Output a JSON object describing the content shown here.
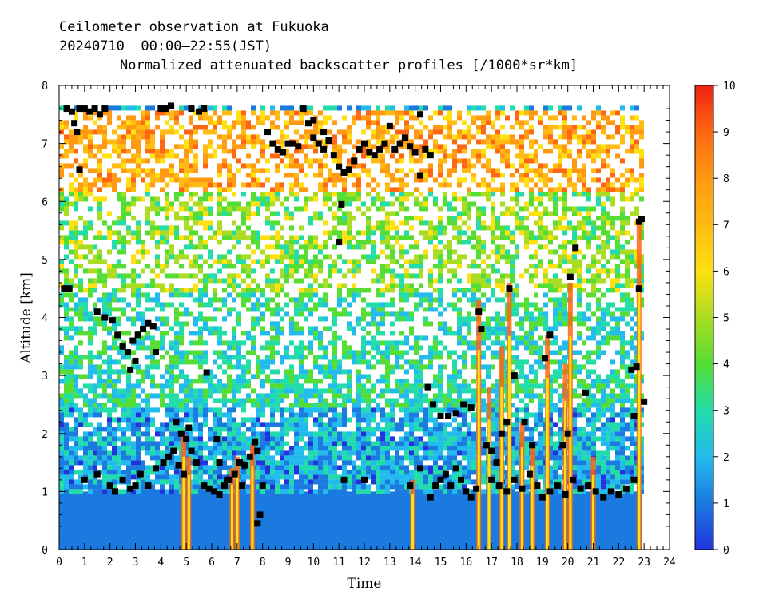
{
  "chart_data": {
    "type": "heatmap",
    "title": "Ceilometer observation at Fukuoka",
    "subtitle": "20240710  00:00–22:55(JST)",
    "quantity_label": "Normalized attenuated backscatter profiles [/1000*sr*km]",
    "xlabel": "Time",
    "ylabel": "Altitude [km]",
    "xlim": [
      0,
      24
    ],
    "ylim": [
      0,
      8
    ],
    "x_ticks": [
      0,
      1,
      2,
      3,
      4,
      5,
      6,
      7,
      8,
      9,
      10,
      11,
      12,
      13,
      14,
      15,
      16,
      17,
      18,
      19,
      20,
      21,
      22,
      23,
      24
    ],
    "y_ticks": [
      0,
      1,
      2,
      3,
      4,
      5,
      6,
      7,
      8
    ],
    "data_time_range": [
      0,
      22.92
    ],
    "data_altitude_max": 7.65,
    "colorbar": {
      "range": [
        0,
        10
      ],
      "ticks": [
        0,
        1,
        2,
        3,
        4,
        5,
        6,
        7,
        8,
        9,
        10
      ],
      "colors": [
        "#2233dd",
        "#1a7ae0",
        "#22bbee",
        "#22ddaa",
        "#55dd33",
        "#aadd22",
        "#ffe011",
        "#ffbb11",
        "#ff9911",
        "#ff6611",
        "#ee2211"
      ]
    },
    "background_layers": [
      {
        "alt_range": [
          0,
          1.0
        ],
        "value": 1.2
      },
      {
        "alt_range": [
          1.0,
          2.5
        ],
        "value": 1.8
      },
      {
        "alt_range": [
          2.5,
          4.5
        ],
        "value": 3.0
      },
      {
        "alt_range": [
          4.5,
          6.2
        ],
        "value": 4.5
      },
      {
        "alt_range": [
          6.2,
          7.65
        ],
        "value": 7.5
      }
    ],
    "convective_columns": [
      {
        "time": 4.9,
        "top": 2.0
      },
      {
        "time": 5.1,
        "top": 1.6
      },
      {
        "time": 6.8,
        "top": 1.4
      },
      {
        "time": 7.0,
        "top": 1.6
      },
      {
        "time": 7.6,
        "top": 1.8
      },
      {
        "time": 13.9,
        "top": 1.2
      },
      {
        "time": 16.5,
        "top": 4.3
      },
      {
        "time": 16.9,
        "top": 2.8
      },
      {
        "time": 17.4,
        "top": 3.5
      },
      {
        "time": 17.7,
        "top": 4.6
      },
      {
        "time": 18.2,
        "top": 2.2
      },
      {
        "time": 18.6,
        "top": 1.8
      },
      {
        "time": 19.2,
        "top": 3.7
      },
      {
        "time": 19.9,
        "top": 3.2
      },
      {
        "time": 20.1,
        "top": 4.6
      },
      {
        "time": 21.0,
        "top": 1.6
      },
      {
        "time": 22.8,
        "top": 5.6
      }
    ],
    "cloud_base_points": [
      [
        0.3,
        7.6
      ],
      [
        0.5,
        7.55
      ],
      [
        0.6,
        7.35
      ],
      [
        0.7,
        7.2
      ],
      [
        0.8,
        7.6
      ],
      [
        1.0,
        7.6
      ],
      [
        1.2,
        7.55
      ],
      [
        1.4,
        7.6
      ],
      [
        1.6,
        7.5
      ],
      [
        1.8,
        7.6
      ],
      [
        0.8,
        6.55
      ],
      [
        0.2,
        4.5
      ],
      [
        0.4,
        4.5
      ],
      [
        1.5,
        4.1
      ],
      [
        1.8,
        4.0
      ],
      [
        2.1,
        3.95
      ],
      [
        2.3,
        3.7
      ],
      [
        2.5,
        3.5
      ],
      [
        2.7,
        3.4
      ],
      [
        2.9,
        3.6
      ],
      [
        3.1,
        3.7
      ],
      [
        3.3,
        3.8
      ],
      [
        3.5,
        3.9
      ],
      [
        3.7,
        3.85
      ],
      [
        3.8,
        3.4
      ],
      [
        2.8,
        3.1
      ],
      [
        3.0,
        3.25
      ],
      [
        4.0,
        7.6
      ],
      [
        4.2,
        7.6
      ],
      [
        4.4,
        7.65
      ],
      [
        5.2,
        7.6
      ],
      [
        5.5,
        7.55
      ],
      [
        5.7,
        7.6
      ],
      [
        1.0,
        1.2
      ],
      [
        1.5,
        1.3
      ],
      [
        2.0,
        1.1
      ],
      [
        2.2,
        1.0
      ],
      [
        2.5,
        1.2
      ],
      [
        2.8,
        1.05
      ],
      [
        3.0,
        1.1
      ],
      [
        3.2,
        1.3
      ],
      [
        3.5,
        1.1
      ],
      [
        3.8,
        1.4
      ],
      [
        4.1,
        1.5
      ],
      [
        4.3,
        1.6
      ],
      [
        4.5,
        1.7
      ],
      [
        4.7,
        1.45
      ],
      [
        4.9,
        1.3
      ],
      [
        4.6,
        2.2
      ],
      [
        4.8,
        2.0
      ],
      [
        5.0,
        1.9
      ],
      [
        5.1,
        2.1
      ],
      [
        5.2,
        1.7
      ],
      [
        5.4,
        1.5
      ],
      [
        5.7,
        1.1
      ],
      [
        5.9,
        1.05
      ],
      [
        6.1,
        1.0
      ],
      [
        6.3,
        0.95
      ],
      [
        6.5,
        1.1
      ],
      [
        6.7,
        1.2
      ],
      [
        6.9,
        1.3
      ],
      [
        7.1,
        1.5
      ],
      [
        7.3,
        1.45
      ],
      [
        7.5,
        1.6
      ],
      [
        7.7,
        1.85
      ],
      [
        7.8,
        1.7
      ],
      [
        6.2,
        1.9
      ],
      [
        6.3,
        1.5
      ],
      [
        6.6,
        1.2
      ],
      [
        7.2,
        1.1
      ],
      [
        7.9,
        0.6
      ],
      [
        7.8,
        0.45
      ],
      [
        8.0,
        1.1
      ],
      [
        5.8,
        3.05
      ],
      [
        8.2,
        7.2
      ],
      [
        8.4,
        7.0
      ],
      [
        8.6,
        6.9
      ],
      [
        8.8,
        6.85
      ],
      [
        9.0,
        7.0
      ],
      [
        9.2,
        7.0
      ],
      [
        9.4,
        6.95
      ],
      [
        9.6,
        7.6
      ],
      [
        9.8,
        7.35
      ],
      [
        10.0,
        7.1
      ],
      [
        10.2,
        7.0
      ],
      [
        10.4,
        6.9
      ],
      [
        10.6,
        7.05
      ],
      [
        10.8,
        6.8
      ],
      [
        11.0,
        6.6
      ],
      [
        11.2,
        6.5
      ],
      [
        11.4,
        6.55
      ],
      [
        11.6,
        6.7
      ],
      [
        11.8,
        6.9
      ],
      [
        12.0,
        7.0
      ],
      [
        12.2,
        6.85
      ],
      [
        12.4,
        6.8
      ],
      [
        12.6,
        6.9
      ],
      [
        12.8,
        7.0
      ],
      [
        13.0,
        7.3
      ],
      [
        13.2,
        6.9
      ],
      [
        13.4,
        7.0
      ],
      [
        13.6,
        7.1
      ],
      [
        13.8,
        6.95
      ],
      [
        14.0,
        6.85
      ],
      [
        14.2,
        7.5
      ],
      [
        14.4,
        6.9
      ],
      [
        14.6,
        6.8
      ],
      [
        14.2,
        6.45
      ],
      [
        11.1,
        5.95
      ],
      [
        11.0,
        5.3
      ],
      [
        10.0,
        7.4
      ],
      [
        10.4,
        7.2
      ],
      [
        11.2,
        1.2
      ],
      [
        12.0,
        1.2
      ],
      [
        13.8,
        1.1
      ],
      [
        14.2,
        1.4
      ],
      [
        14.6,
        0.9
      ],
      [
        14.8,
        1.1
      ],
      [
        15.0,
        1.2
      ],
      [
        15.2,
        1.3
      ],
      [
        15.4,
        1.1
      ],
      [
        15.6,
        1.4
      ],
      [
        15.8,
        1.2
      ],
      [
        16.0,
        1.0
      ],
      [
        16.2,
        0.9
      ],
      [
        16.4,
        1.05
      ],
      [
        14.5,
        2.8
      ],
      [
        14.7,
        2.5
      ],
      [
        15.0,
        2.3
      ],
      [
        15.3,
        2.3
      ],
      [
        15.6,
        2.35
      ],
      [
        15.9,
        2.5
      ],
      [
        16.2,
        2.45
      ],
      [
        16.5,
        4.1
      ],
      [
        16.6,
        3.8
      ],
      [
        16.8,
        1.8
      ],
      [
        17.0,
        1.7
      ],
      [
        17.2,
        1.5
      ],
      [
        17.4,
        2.0
      ],
      [
        17.6,
        2.2
      ],
      [
        17.7,
        4.5
      ],
      [
        17.9,
        3.0
      ],
      [
        17.0,
        1.2
      ],
      [
        17.3,
        1.1
      ],
      [
        17.6,
        1.0
      ],
      [
        17.9,
        1.2
      ],
      [
        18.2,
        1.05
      ],
      [
        18.5,
        1.3
      ],
      [
        18.8,
        1.1
      ],
      [
        19.0,
        0.9
      ],
      [
        19.3,
        1.0
      ],
      [
        19.6,
        1.1
      ],
      [
        19.9,
        0.95
      ],
      [
        20.2,
        1.2
      ],
      [
        20.5,
        1.05
      ],
      [
        20.8,
        1.1
      ],
      [
        21.1,
        1.0
      ],
      [
        21.4,
        0.9
      ],
      [
        21.7,
        1.0
      ],
      [
        22.0,
        0.95
      ],
      [
        22.3,
        1.05
      ],
      [
        22.6,
        1.2
      ],
      [
        18.3,
        2.2
      ],
      [
        18.6,
        1.8
      ],
      [
        19.1,
        3.3
      ],
      [
        19.3,
        3.7
      ],
      [
        19.8,
        1.8
      ],
      [
        20.0,
        2.0
      ],
      [
        20.1,
        4.7
      ],
      [
        20.3,
        5.2
      ],
      [
        20.7,
        2.7
      ],
      [
        22.5,
        3.1
      ],
      [
        22.7,
        3.15
      ],
      [
        22.6,
        2.3
      ],
      [
        22.8,
        5.65
      ],
      [
        22.9,
        5.7
      ],
      [
        22.8,
        4.5
      ],
      [
        23.0,
        2.55
      ]
    ]
  }
}
